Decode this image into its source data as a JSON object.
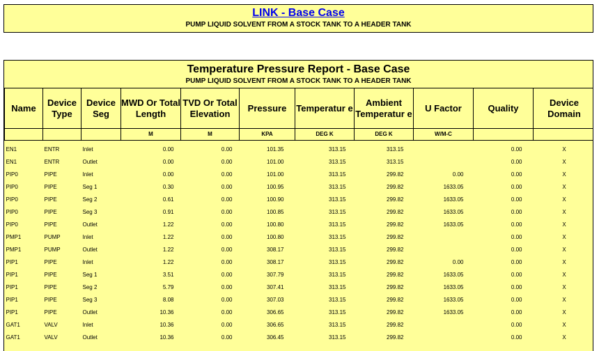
{
  "banner": {
    "link": "LINK - Base Case",
    "subtitle": "PUMP LIQUID SOLVENT FROM A STOCK TANK TO A HEADER TANK"
  },
  "report": {
    "title": "Temperature Pressure Report - Base Case",
    "subtitle": "PUMP LIQUID SOLVENT FROM A STOCK TANK TO A HEADER TANK",
    "columns": [
      "Name",
      "Device Type",
      "Device Seg",
      "MWD Or Total Length",
      "TVD Or Total Elevation",
      "Pressure",
      "Temperatur e",
      "Ambient Temperatur e",
      "U Factor",
      "Quality",
      "Device Domain"
    ],
    "units": [
      "",
      "",
      "",
      "M",
      "M",
      "KPA",
      "DEG K",
      "DEG K",
      "W/M-C",
      "",
      ""
    ],
    "rows": [
      [
        "EN1",
        "ENTR",
        "Inlet",
        "0.00",
        "0.00",
        "101.35",
        "313.15",
        "313.15",
        "",
        "0.00",
        "X"
      ],
      [
        "EN1",
        "ENTR",
        "Outlet",
        "0.00",
        "0.00",
        "101.00",
        "313.15",
        "313.15",
        "",
        "0.00",
        "X"
      ],
      [
        "PIP0",
        "PIPE",
        "Inlet",
        "0.00",
        "0.00",
        "101.00",
        "313.15",
        "299.82",
        "0.00",
        "0.00",
        "X"
      ],
      [
        "PIP0",
        "PIPE",
        "Seg 1",
        "0.30",
        "0.00",
        "100.95",
        "313.15",
        "299.82",
        "1633.05",
        "0.00",
        "X"
      ],
      [
        "PIP0",
        "PIPE",
        "Seg 2",
        "0.61",
        "0.00",
        "100.90",
        "313.15",
        "299.82",
        "1633.05",
        "0.00",
        "X"
      ],
      [
        "PIP0",
        "PIPE",
        "Seg 3",
        "0.91",
        "0.00",
        "100.85",
        "313.15",
        "299.82",
        "1633.05",
        "0.00",
        "X"
      ],
      [
        "PIP0",
        "PIPE",
        "Outlet",
        "1.22",
        "0.00",
        "100.80",
        "313.15",
        "299.82",
        "1633.05",
        "0.00",
        "X"
      ],
      [
        "PMP1",
        "PUMP",
        "Inlet",
        "1.22",
        "0.00",
        "100.80",
        "313.15",
        "299.82",
        "",
        "0.00",
        "X"
      ],
      [
        "PMP1",
        "PUMP",
        "Outlet",
        "1.22",
        "0.00",
        "308.17",
        "313.15",
        "299.82",
        "",
        "0.00",
        "X"
      ],
      [
        "PIP1",
        "PIPE",
        "Inlet",
        "1.22",
        "0.00",
        "308.17",
        "313.15",
        "299.82",
        "0.00",
        "0.00",
        "X"
      ],
      [
        "PIP1",
        "PIPE",
        "Seg 1",
        "3.51",
        "0.00",
        "307.79",
        "313.15",
        "299.82",
        "1633.05",
        "0.00",
        "X"
      ],
      [
        "PIP1",
        "PIPE",
        "Seg 2",
        "5.79",
        "0.00",
        "307.41",
        "313.15",
        "299.82",
        "1633.05",
        "0.00",
        "X"
      ],
      [
        "PIP1",
        "PIPE",
        "Seg 3",
        "8.08",
        "0.00",
        "307.03",
        "313.15",
        "299.82",
        "1633.05",
        "0.00",
        "X"
      ],
      [
        "PIP1",
        "PIPE",
        "Outlet",
        "10.36",
        "0.00",
        "306.65",
        "313.15",
        "299.82",
        "1633.05",
        "0.00",
        "X"
      ],
      [
        "GAT1",
        "VALV",
        "Inlet",
        "10.36",
        "0.00",
        "306.65",
        "313.15",
        "299.82",
        "",
        "0.00",
        "X"
      ],
      [
        "GAT1",
        "VALV",
        "Outlet",
        "10.36",
        "0.00",
        "306.45",
        "313.15",
        "299.82",
        "",
        "0.00",
        "X"
      ]
    ]
  }
}
